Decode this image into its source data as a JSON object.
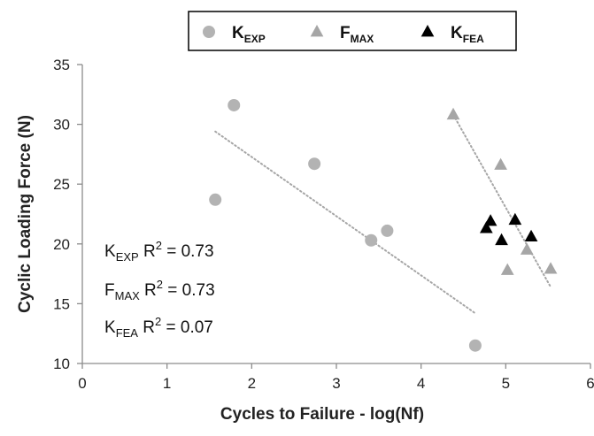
{
  "chart_data": {
    "type": "scatter",
    "xlabel": "Cycles to Failure - log(Nf)",
    "ylabel": "Cyclic Loading Force (N)",
    "xlim": [
      0,
      6
    ],
    "ylim": [
      10,
      35
    ],
    "x_ticks": [
      0,
      1,
      2,
      3,
      4,
      5,
      6
    ],
    "y_ticks": [
      10,
      15,
      20,
      25,
      30,
      35
    ],
    "grid": false,
    "legend_position": "top",
    "series": [
      {
        "name": "K",
        "name_sub": "EXP",
        "marker": "circle",
        "color": "#b3b3b3",
        "points": [
          [
            1.57,
            23.7
          ],
          [
            1.79,
            31.6
          ],
          [
            2.74,
            26.7
          ],
          [
            3.41,
            20.3
          ],
          [
            3.6,
            21.1
          ],
          [
            4.64,
            11.5
          ]
        ],
        "trendline": {
          "x": [
            1.57,
            4.64
          ],
          "y": [
            29.4,
            14.2
          ]
        }
      },
      {
        "name": "F",
        "name_sub": "MAX",
        "marker": "triangle",
        "color": "#a6a6a6",
        "points": [
          [
            4.38,
            30.8
          ],
          [
            4.94,
            26.6
          ],
          [
            5.02,
            17.8
          ],
          [
            5.25,
            19.5
          ],
          [
            5.53,
            17.9
          ]
        ],
        "trendline": {
          "x": [
            4.38,
            5.53
          ],
          "y": [
            30.8,
            16.4
          ]
        }
      },
      {
        "name": "K",
        "name_sub": "FEA",
        "marker": "triangle",
        "color": "#000000",
        "points": [
          [
            4.77,
            21.3
          ],
          [
            4.82,
            21.9
          ],
          [
            4.95,
            20.3
          ],
          [
            5.11,
            22.0
          ],
          [
            5.3,
            20.6
          ]
        ]
      }
    ],
    "annotations": [
      {
        "pre": "K",
        "sub": "EXP",
        "mid": " R",
        "sup": "2",
        "post": " = 0.73"
      },
      {
        "pre": "F",
        "sub": "MAX",
        "mid": " R",
        "sup": "2",
        "post": " = 0.73"
      },
      {
        "pre": "K",
        "sub": "FEA",
        "mid": " R",
        "sup": "2",
        "post": " = 0.07"
      }
    ],
    "colors": {
      "axis": "#8c8c8c",
      "trendline": "#a6a6a6",
      "legend_border": "#000000"
    }
  }
}
